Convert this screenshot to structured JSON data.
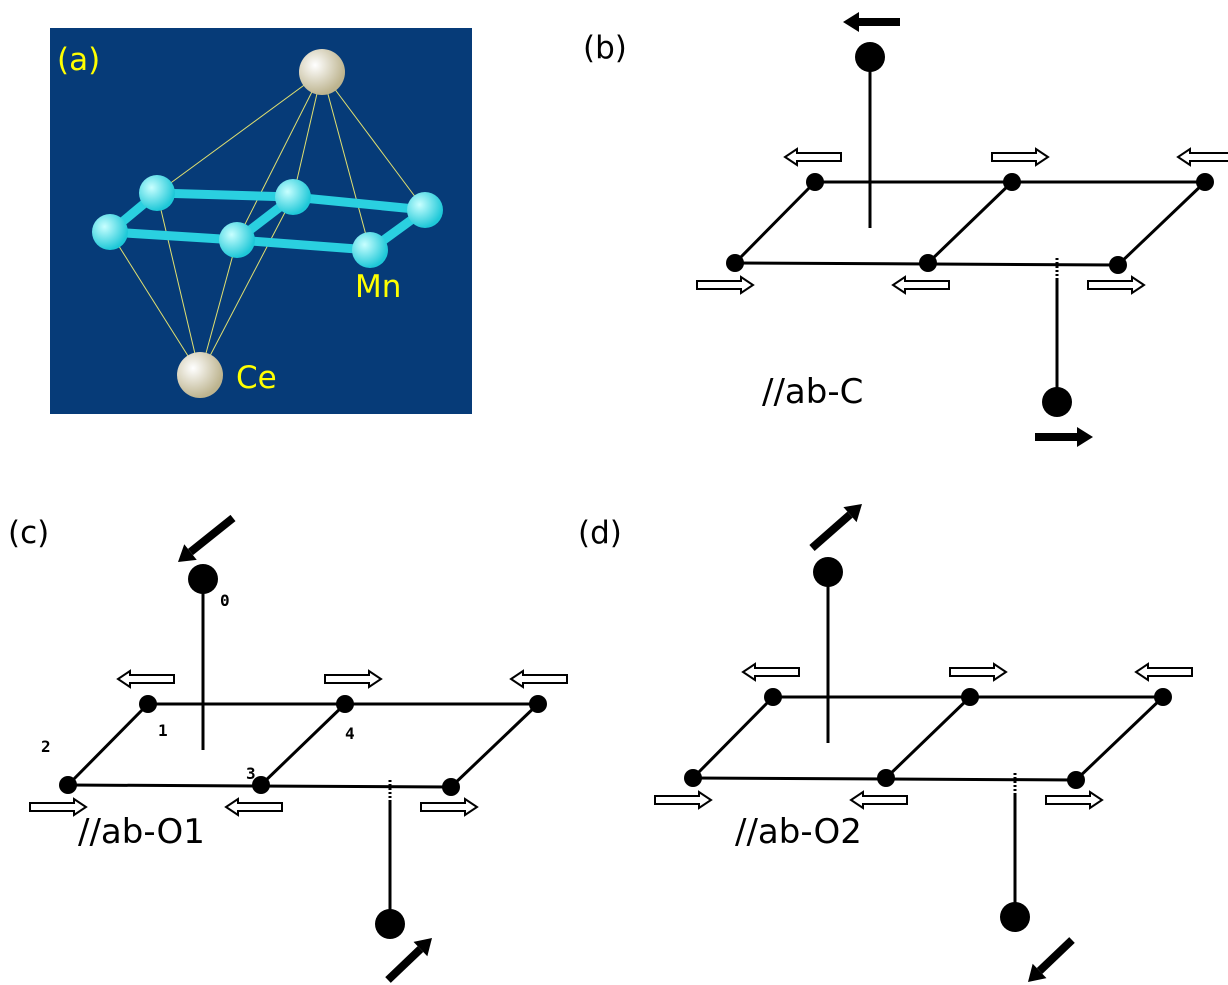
{
  "panels": [
    {
      "label": "(a)",
      "atoms": [
        "Mn",
        "Ce"
      ]
    },
    {
      "label": "(b)",
      "caption": "//ab-C"
    },
    {
      "label": "(c)",
      "caption": "//ab-O1",
      "site_labels": [
        "0",
        "1",
        "2",
        "3",
        "4"
      ]
    },
    {
      "label": "(d)",
      "caption": "//ab-O2"
    }
  ]
}
